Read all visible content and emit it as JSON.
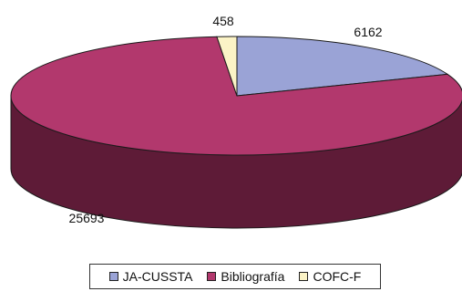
{
  "chart_data": {
    "type": "pie",
    "style": "3d",
    "title": "",
    "slices": [
      {
        "name": "JA-CUSSTA",
        "value": 6162,
        "color": "#9aa3d6",
        "side_color": "#5c6396"
      },
      {
        "name": "Bibliografía",
        "value": 25693,
        "color": "#b2386d",
        "side_color": "#5e1b37"
      },
      {
        "name": "COFC-F",
        "value": 458,
        "color": "#fbf3c6",
        "side_color": "#c9bf8c"
      }
    ],
    "legend_position": "bottom"
  }
}
